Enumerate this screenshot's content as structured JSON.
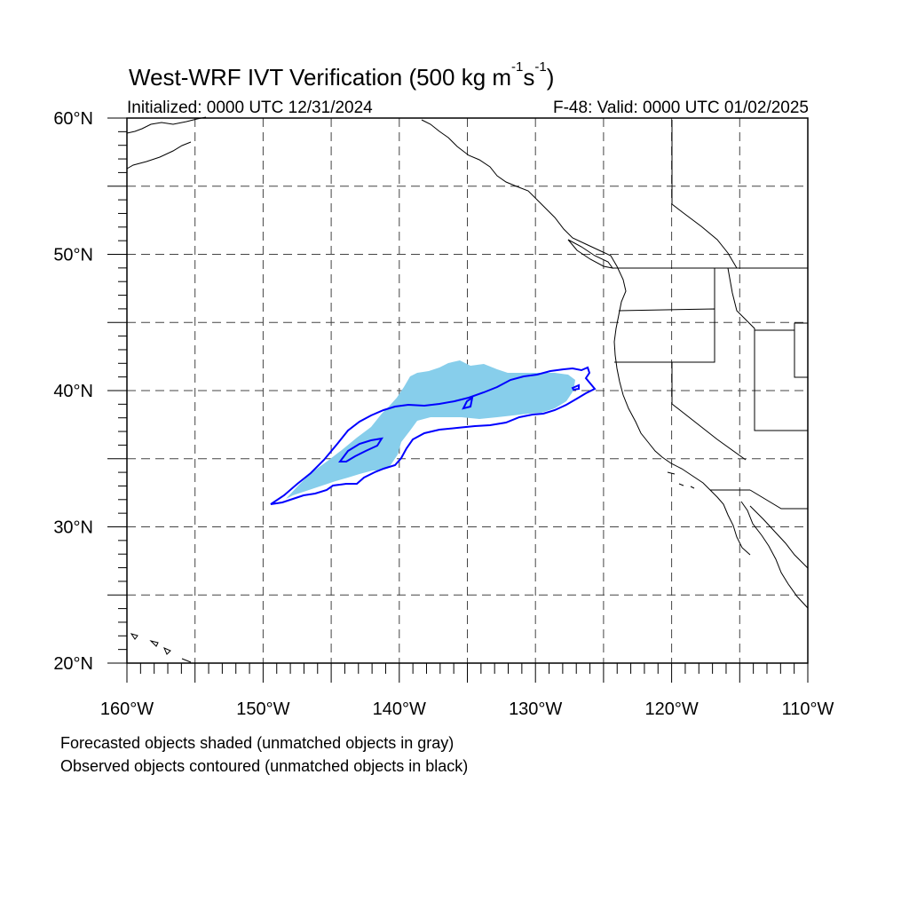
{
  "title": {
    "main": "West-WRF IVT Verification (500 kg m",
    "exp1": "-1",
    "mid": "s",
    "exp2": "-1",
    "tail": ")"
  },
  "initialized": "Initialized: 0000 UTC 12/31/2024",
  "valid": "F-48: Valid: 0000 UTC 01/02/2025",
  "map": {
    "lon_range": [
      -160,
      -110
    ],
    "lat_range": [
      20,
      60
    ],
    "lon_labels": [
      "160°W",
      "150°W",
      "140°W",
      "130°W",
      "120°W",
      "110°W"
    ],
    "lat_labels": [
      "60°N",
      "50°N",
      "40°N",
      "30°N",
      "20°N"
    ],
    "grid": "dashed, every 5 degrees",
    "forecast_fill_color": "#87ceeb",
    "observed_contour_color": "#0000ff",
    "coastline_color": "#000000"
  },
  "legend_notes": [
    "Forecasted objects shaded (unmatched objects in gray)",
    "Observed objects contoured (unmatched objects in black)"
  ]
}
